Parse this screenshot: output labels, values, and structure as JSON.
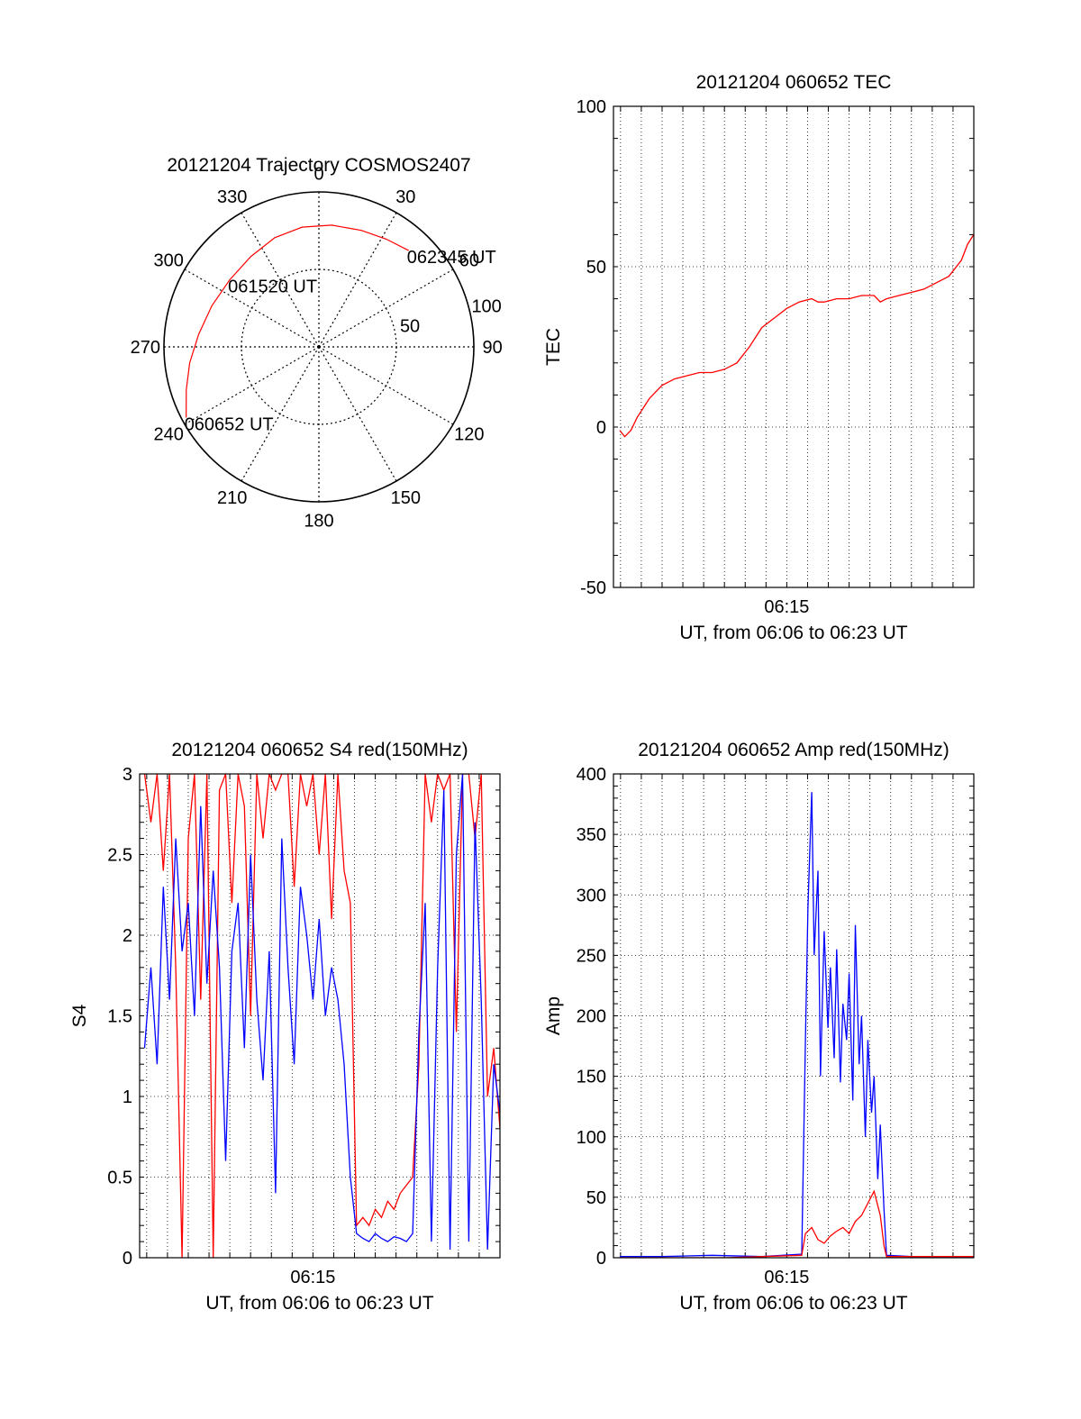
{
  "chart_data": [
    {
      "type": "polar",
      "title": "20121204 Trajectory COSMOS2407",
      "azimuth_labels": [
        "0",
        "30",
        "60",
        "90",
        "120",
        "150",
        "180",
        "210",
        "240",
        "270",
        "300",
        "330"
      ],
      "elevation_rings": [
        {
          "label": "50",
          "value": 50
        },
        {
          "label": "100",
          "value": 100
        }
      ],
      "max_radius": 100,
      "trajectory": {
        "color": "#ff0000",
        "points": [
          {
            "az": 242,
            "r": 97
          },
          {
            "az": 252,
            "r": 90
          },
          {
            "az": 263,
            "r": 84
          },
          {
            "az": 276,
            "r": 78
          },
          {
            "az": 291,
            "r": 74
          },
          {
            "az": 307,
            "r": 72
          },
          {
            "az": 323,
            "r": 73
          },
          {
            "az": 338,
            "r": 76
          },
          {
            "az": 352,
            "r": 78
          },
          {
            "az": 6,
            "r": 79
          },
          {
            "az": 20,
            "r": 80
          },
          {
            "az": 32,
            "r": 82
          },
          {
            "az": 43,
            "r": 85
          }
        ]
      },
      "annotations": [
        {
          "text": "062345 UT",
          "az": 43,
          "r": 85
        },
        {
          "text": "061520 UT",
          "az": 307,
          "r": 72
        },
        {
          "text": "060652 UT",
          "az": 242,
          "r": 97
        }
      ]
    },
    {
      "type": "line",
      "title": "20121204 060652 TEC",
      "xlabel": "UT, from 06:06 to 06:23 UT",
      "ylabel": "TEC",
      "xlim": [
        6.111,
        6.4
      ],
      "ylim": [
        -50,
        100
      ],
      "yticks": [
        -50,
        0,
        50,
        100
      ],
      "xticks": [
        {
          "v": 6.25,
          "label": "06:15"
        }
      ],
      "grid": true,
      "series": [
        {
          "color": "#ff0000",
          "x": [
            6.116,
            6.12,
            6.125,
            6.13,
            6.135,
            6.14,
            6.15,
            6.16,
            6.17,
            6.18,
            6.19,
            6.2,
            6.21,
            6.22,
            6.23,
            6.24,
            6.25,
            6.26,
            6.27,
            6.275,
            6.28,
            6.29,
            6.3,
            6.31,
            6.32,
            6.325,
            6.33,
            6.34,
            6.35,
            6.36,
            6.37,
            6.38,
            6.39,
            6.395,
            6.4
          ],
          "y": [
            -1,
            -3,
            -1,
            3,
            6,
            9,
            13,
            15,
            16,
            17,
            17,
            18,
            20,
            25,
            31,
            34,
            37,
            39,
            40,
            39,
            39,
            40,
            40,
            41,
            41,
            39,
            40,
            41,
            42,
            43,
            45,
            47,
            52,
            57,
            60
          ]
        }
      ]
    },
    {
      "type": "line",
      "title": "20121204 060652 S4 red(150MHz)",
      "xlabel": "UT, from 06:06 to 06:23 UT",
      "ylabel": "S4",
      "xlim": [
        6.111,
        6.4
      ],
      "ylim": [
        0,
        3
      ],
      "yticks": [
        0,
        0.5,
        1,
        1.5,
        2,
        2.5,
        3
      ],
      "ytick_labels": [
        "0",
        "0.5",
        "1",
        "1.5",
        "2",
        "2.5",
        "3"
      ],
      "xticks": [
        {
          "v": 6.25,
          "label": "06:15"
        }
      ],
      "grid": true,
      "series": [
        {
          "color": "#ff0000",
          "x": [
            6.115,
            6.12,
            6.125,
            6.13,
            6.135,
            6.14,
            6.145,
            6.15,
            6.155,
            6.16,
            6.165,
            6.17,
            6.175,
            6.18,
            6.185,
            6.19,
            6.195,
            6.2,
            6.205,
            6.21,
            6.215,
            6.22,
            6.225,
            6.23,
            6.235,
            6.24,
            6.245,
            6.25,
            6.255,
            6.26,
            6.265,
            6.27,
            6.275,
            6.28,
            6.285,
            6.29,
            6.295,
            6.3,
            6.305,
            6.31,
            6.315,
            6.32,
            6.325,
            6.33,
            6.335,
            6.34,
            6.345,
            6.35,
            6.355,
            6.36,
            6.365,
            6.37,
            6.375,
            6.38,
            6.385,
            6.39,
            6.395,
            6.4
          ],
          "y": [
            3,
            2.7,
            3,
            2.4,
            3,
            1.8,
            0,
            2.6,
            3,
            1.6,
            3,
            0,
            2.9,
            3,
            2.2,
            3,
            2.8,
            1.5,
            3,
            2.6,
            3,
            2.9,
            3,
            3,
            2.3,
            3,
            2.8,
            3,
            2.5,
            3,
            2.1,
            3,
            2.4,
            2.2,
            0.2,
            0.25,
            0.2,
            0.3,
            0.25,
            0.35,
            0.3,
            0.4,
            0.45,
            0.5,
            1.2,
            3,
            2.7,
            3,
            2.9,
            3,
            1.4,
            3,
            3,
            2.6,
            3,
            1,
            1.3,
            0.8
          ]
        },
        {
          "color": "#0000ff",
          "x": [
            6.115,
            6.12,
            6.125,
            6.13,
            6.135,
            6.14,
            6.145,
            6.15,
            6.155,
            6.16,
            6.165,
            6.17,
            6.175,
            6.18,
            6.185,
            6.19,
            6.195,
            6.2,
            6.205,
            6.21,
            6.215,
            6.22,
            6.225,
            6.23,
            6.235,
            6.24,
            6.245,
            6.25,
            6.255,
            6.26,
            6.265,
            6.27,
            6.275,
            6.28,
            6.285,
            6.29,
            6.295,
            6.3,
            6.305,
            6.31,
            6.315,
            6.32,
            6.325,
            6.33,
            6.335,
            6.34,
            6.345,
            6.35,
            6.355,
            6.36,
            6.365,
            6.37,
            6.375,
            6.38,
            6.385,
            6.39,
            6.395,
            6.4
          ],
          "y": [
            1.3,
            1.8,
            1.2,
            2.3,
            1.6,
            2.6,
            1.9,
            2.2,
            1.5,
            2.8,
            1.7,
            2.4,
            1.8,
            0.6,
            1.9,
            2.2,
            1.3,
            2.5,
            1.6,
            1.1,
            1.9,
            0.4,
            2.6,
            1.8,
            1.2,
            2.3,
            2.0,
            1.6,
            2.1,
            1.5,
            1.8,
            1.6,
            1.2,
            0.5,
            0.15,
            0.12,
            0.1,
            0.15,
            0.12,
            0.1,
            0.13,
            0.12,
            0.1,
            0.15,
            1.4,
            2.2,
            0.1,
            1.8,
            2.9,
            0.05,
            2.5,
            3,
            0.1,
            2.7,
            1.6,
            0.05,
            1.2,
            0.9
          ]
        }
      ]
    },
    {
      "type": "line",
      "title": "20121204 060652 Amp red(150MHz)",
      "xlabel": "UT, from 06:06 to 06:23 UT",
      "ylabel": "Amp",
      "xlim": [
        6.111,
        6.4
      ],
      "ylim": [
        0,
        400
      ],
      "yticks": [
        0,
        50,
        100,
        150,
        200,
        250,
        300,
        350,
        400
      ],
      "xticks": [
        {
          "v": 6.25,
          "label": "06:15"
        }
      ],
      "grid": true,
      "series": [
        {
          "color": "#0000ff",
          "x": [
            6.116,
            6.15,
            6.19,
            6.23,
            6.262,
            6.265,
            6.267,
            6.27,
            6.272,
            6.275,
            6.277,
            6.28,
            6.283,
            6.285,
            6.288,
            6.29,
            6.293,
            6.295,
            6.298,
            6.3,
            6.303,
            6.305,
            6.308,
            6.31,
            6.313,
            6.315,
            6.318,
            6.32,
            6.323,
            6.325,
            6.328,
            6.33,
            6.35,
            6.4
          ],
          "y": [
            1,
            1,
            2,
            1,
            3,
            180,
            290,
            385,
            250,
            320,
            150,
            270,
            190,
            240,
            165,
            255,
            145,
            210,
            180,
            235,
            130,
            275,
            160,
            200,
            100,
            180,
            120,
            150,
            65,
            110,
            40,
            2,
            1,
            1
          ]
        },
        {
          "color": "#ff0000",
          "x": [
            6.116,
            6.2,
            6.262,
            6.265,
            6.27,
            6.275,
            6.28,
            6.285,
            6.29,
            6.295,
            6.3,
            6.305,
            6.31,
            6.315,
            6.32,
            6.325,
            6.328,
            6.33,
            6.4
          ],
          "y": [
            0,
            0,
            2,
            20,
            25,
            15,
            12,
            18,
            22,
            25,
            20,
            30,
            35,
            45,
            55,
            35,
            10,
            1,
            1
          ]
        }
      ]
    }
  ]
}
